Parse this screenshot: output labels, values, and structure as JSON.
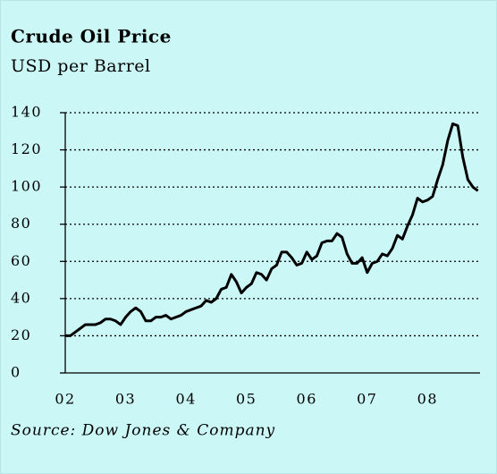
{
  "chart_data": {
    "type": "line",
    "title": "Crude Oil Price",
    "subtitle": "USD per Barrel",
    "source": "Source: Dow Jones & Company",
    "categories": [
      "02",
      null,
      null,
      null,
      null,
      null,
      null,
      null,
      null,
      null,
      null,
      null,
      "03",
      null,
      null,
      null,
      null,
      null,
      null,
      null,
      null,
      null,
      null,
      null,
      "04",
      null,
      null,
      null,
      null,
      null,
      null,
      null,
      null,
      null,
      null,
      null,
      "05",
      null,
      null,
      null,
      null,
      null,
      null,
      null,
      null,
      null,
      null,
      null,
      "06",
      null,
      null,
      null,
      null,
      null,
      null,
      null,
      null,
      null,
      null,
      null,
      "07",
      null,
      null,
      null,
      null,
      null,
      null,
      null,
      null,
      null,
      null,
      null,
      "08",
      null,
      null,
      null,
      null,
      null,
      null,
      null,
      null,
      null,
      null
    ],
    "series": [
      {
        "name": "Crude Oil Price",
        "color": "#000000",
        "values": [
          20,
          20,
          22,
          24,
          26,
          26,
          26,
          27,
          29,
          29,
          28,
          26,
          30,
          33,
          35,
          33,
          28,
          28,
          30,
          30,
          31,
          29,
          30,
          31,
          33,
          34,
          35,
          36,
          39,
          38,
          40,
          45,
          46,
          53,
          49,
          43,
          46,
          48,
          54,
          53,
          50,
          56,
          58,
          65,
          65,
          62,
          58,
          59,
          65,
          61,
          63,
          70,
          71,
          71,
          75,
          73,
          64,
          59,
          59,
          62,
          54,
          59,
          60,
          64,
          63,
          67,
          74,
          72,
          79,
          85,
          94,
          92,
          93,
          95,
          104,
          112,
          125,
          134,
          133,
          116,
          104,
          100,
          98
        ]
      }
    ],
    "ylim": [
      0,
      140
    ],
    "yticks": [
      0,
      20,
      40,
      60,
      80,
      100,
      120,
      140
    ],
    "grid": true
  }
}
